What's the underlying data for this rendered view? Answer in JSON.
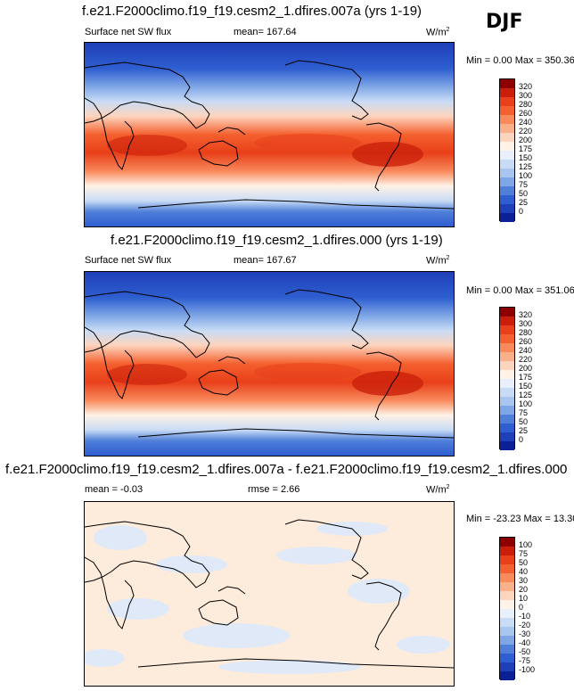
{
  "season": "DJF",
  "units": "W/m",
  "units_sup": "2",
  "panels": [
    {
      "title": "f.e21.F2000climo.f19_f19.cesm2_1.dfires.007a (yrs 1-19)",
      "left_label": "Surface net SW flux",
      "mean_text": "mean= 167.64",
      "minmax_text": "Min =   0.00 Max = 350.36",
      "ticks": [
        "320",
        "300",
        "280",
        "260",
        "240",
        "220",
        "200",
        "175",
        "150",
        "125",
        "100",
        "75",
        "50",
        "25",
        "0"
      ],
      "colors": [
        "#8e0000",
        "#c81e0a",
        "#e8401a",
        "#f4602f",
        "#f88a5c",
        "#fbb08c",
        "#fdd4bd",
        "#fff2e6",
        "#e8f0fb",
        "#c9dcf5",
        "#a9c6ef",
        "#7fa7e6",
        "#4f7fd8",
        "#2e5ed0",
        "#1f3fb8",
        "#0b1f96"
      ]
    },
    {
      "title": "f.e21.F2000climo.f19_f19.cesm2_1.dfires.000 (yrs 1-19)",
      "left_label": "Surface net SW flux",
      "mean_text": "mean= 167.67",
      "minmax_text": "Min =   0.00 Max = 351.06",
      "ticks": [
        "320",
        "300",
        "280",
        "260",
        "240",
        "220",
        "200",
        "175",
        "150",
        "125",
        "100",
        "75",
        "50",
        "25",
        "0"
      ],
      "colors": [
        "#8e0000",
        "#c81e0a",
        "#e8401a",
        "#f4602f",
        "#f88a5c",
        "#fbb08c",
        "#fdd4bd",
        "#fff2e6",
        "#e8f0fb",
        "#c9dcf5",
        "#a9c6ef",
        "#7fa7e6",
        "#4f7fd8",
        "#2e5ed0",
        "#1f3fb8",
        "#0b1f96"
      ]
    },
    {
      "title": "f.e21.F2000climo.f19_f19.cesm2_1.dfires.007a - f.e21.F2000climo.f19_f19.cesm2_1.dfires.000",
      "left_label": "mean =  -0.03",
      "mean_text": "rmse =   2.66",
      "minmax_text": "Min = -23.23 Max =  13.30",
      "ticks": [
        "100",
        "75",
        "50",
        "40",
        "30",
        "20",
        "10",
        "0",
        "-10",
        "-20",
        "-30",
        "-40",
        "-50",
        "-75",
        "-100"
      ],
      "colors": [
        "#8e0000",
        "#c81e0a",
        "#e8401a",
        "#f4602f",
        "#f88a5c",
        "#fbb08c",
        "#fdd4bd",
        "#fff2e6",
        "#e8f0fb",
        "#c9dcf5",
        "#a9c6ef",
        "#7fa7e6",
        "#4f7fd8",
        "#2e5ed0",
        "#1f3fb8",
        "#0b1f96"
      ]
    }
  ],
  "chart_data": [
    {
      "type": "heatmap",
      "title": "f.e21.F2000climo.f19_f19.cesm2_1.dfires.007a (yrs 1-19)",
      "variable": "Surface net SW flux",
      "units": "W/m2",
      "mean": 167.64,
      "min": 0.0,
      "max": 350.36,
      "levels": [
        0,
        25,
        50,
        75,
        100,
        125,
        150,
        175,
        200,
        220,
        240,
        260,
        280,
        300,
        320
      ]
    },
    {
      "type": "heatmap",
      "title": "f.e21.F2000climo.f19_f19.cesm2_1.dfires.000 (yrs 1-19)",
      "variable": "Surface net SW flux",
      "units": "W/m2",
      "mean": 167.67,
      "min": 0.0,
      "max": 351.06,
      "levels": [
        0,
        25,
        50,
        75,
        100,
        125,
        150,
        175,
        200,
        220,
        240,
        260,
        280,
        300,
        320
      ]
    },
    {
      "type": "heatmap",
      "title": "f.e21.F2000climo.f19_f19.cesm2_1.dfires.007a - f.e21.F2000climo.f19_f19.cesm2_1.dfires.000",
      "units": "W/m2",
      "mean": -0.03,
      "rmse": 2.66,
      "min": -23.23,
      "max": 13.3,
      "levels": [
        -100,
        -75,
        -50,
        -40,
        -30,
        -20,
        -10,
        0,
        10,
        20,
        30,
        40,
        50,
        75,
        100
      ]
    }
  ]
}
